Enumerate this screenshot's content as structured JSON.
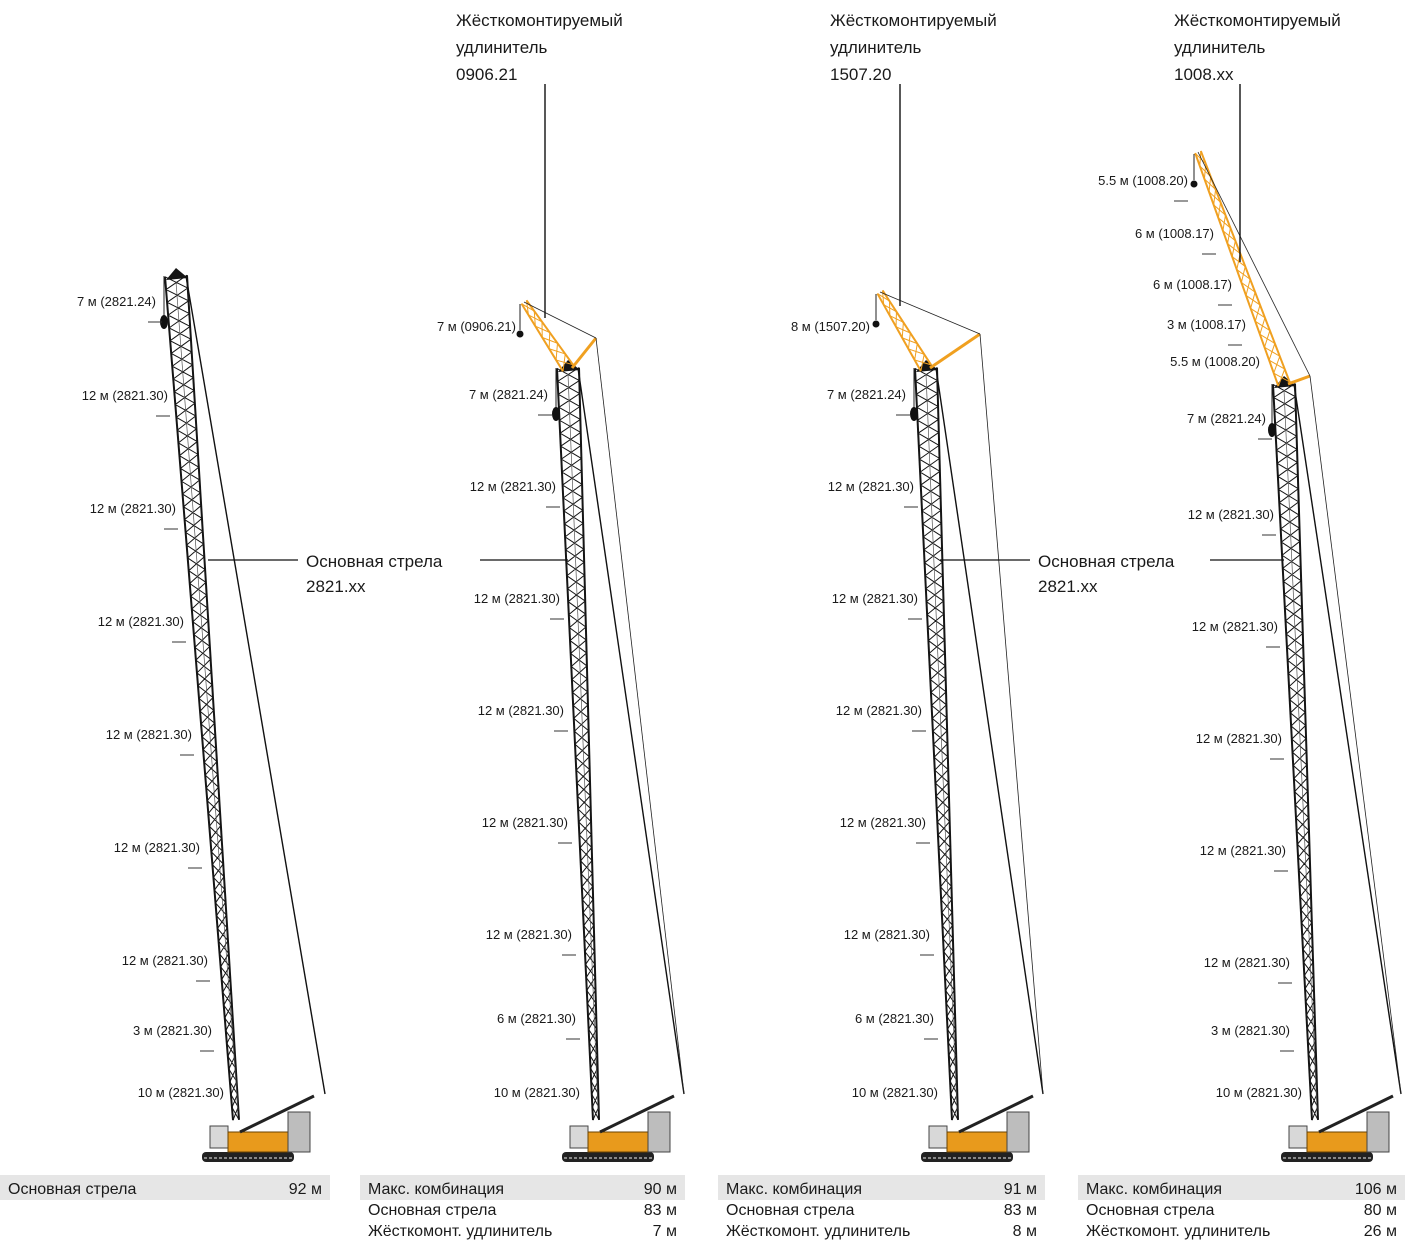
{
  "colors": {
    "boom": "#151515",
    "jib": "#f0a020",
    "carrier": "#e89a1c",
    "row_bg": "#e6e6e6"
  },
  "labels": {
    "main_boom": [
      "Основная стрела",
      "2821.xx"
    ],
    "jib_a": [
      "Жёсткомонтируемый",
      "удлинитель",
      "0906.21"
    ],
    "jib_b": [
      "Жёсткомонтируемый",
      "удлинитель",
      "1507.20"
    ],
    "jib_c": [
      "Жёсткомонтируемый",
      "удлинитель",
      "1008.xx"
    ]
  },
  "configs": [
    {
      "segments": [
        "7 м (2821.24)",
        "12 м (2821.30)",
        "12 м (2821.30)",
        "12 м (2821.30)",
        "12 м (2821.30)",
        "12 м (2821.30)",
        "12 м (2821.30)",
        "3 м (2821.30)",
        "10 м (2821.30)"
      ],
      "table": [
        {
          "label": "Основная стрела",
          "value": "92 м"
        }
      ]
    },
    {
      "segments": [
        "7 м (0906.21)",
        "7 м (2821.24)",
        "12 м (2821.30)",
        "12 м (2821.30)",
        "12 м (2821.30)",
        "12 м (2821.30)",
        "12 м (2821.30)",
        "6 м (2821.30)",
        "10 м (2821.30)"
      ],
      "table": [
        {
          "label": "Макс. комбинация",
          "value": "90 м"
        },
        {
          "label": "Основная стрела",
          "value": "83 м"
        },
        {
          "label": "Жёсткомонт. удлинитель",
          "value": "7 м"
        }
      ]
    },
    {
      "segments": [
        "8 м (1507.20)",
        "7 м (2821.24)",
        "12 м (2821.30)",
        "12 м (2821.30)",
        "12 м (2821.30)",
        "12 м (2821.30)",
        "12 м (2821.30)",
        "6 м (2821.30)",
        "10 м (2821.30)"
      ],
      "table": [
        {
          "label": "Макс. комбинация",
          "value": "91 м"
        },
        {
          "label": "Основная стрела",
          "value": "83 м"
        },
        {
          "label": "Жёсткомонт. удлинитель",
          "value": "8 м"
        }
      ]
    },
    {
      "segments": [
        "5.5 м (1008.20)",
        "6 м (1008.17)",
        "6 м (1008.17)",
        "3 м (1008.17)",
        "5.5 м (1008.20)",
        "7 м (2821.24)",
        "12 м (2821.30)",
        "12 м (2821.30)",
        "12 м (2821.30)",
        "12 м (2821.30)",
        "12 м (2821.30)",
        "3 м (2821.30)",
        "10 м (2821.30)"
      ],
      "table": [
        {
          "label": "Макс. комбинация",
          "value": "106 м"
        },
        {
          "label": "Основная стрела",
          "value": "80 м"
        },
        {
          "label": "Жёсткомонт. удлинитель",
          "value": "26 м"
        }
      ]
    }
  ]
}
